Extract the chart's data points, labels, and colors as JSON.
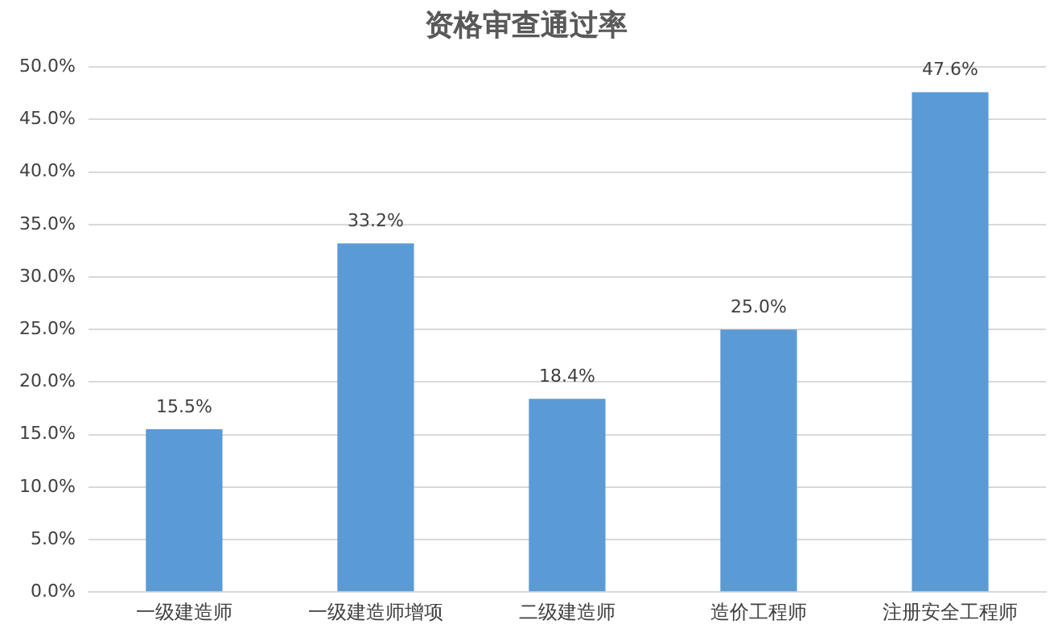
{
  "chart_data": {
    "type": "bar",
    "title": "资格审查通过率",
    "categories": [
      "一级建造师",
      "一级建造师增项",
      "二级建造师",
      "造价工程师",
      "注册安全工程师"
    ],
    "values": [
      15.5,
      33.2,
      18.4,
      25.0,
      47.6
    ],
    "value_labels": [
      "15.5%",
      "33.2%",
      "18.4%",
      "25.0%",
      "47.6%"
    ],
    "color": "#5b9bd5",
    "ylim": [
      0,
      50
    ],
    "yticks": [
      {
        "value": 0,
        "label": "0.0%"
      },
      {
        "value": 5,
        "label": "5.0%"
      },
      {
        "value": 10,
        "label": "10.0%"
      },
      {
        "value": 15,
        "label": "15.0%"
      },
      {
        "value": 20,
        "label": "20.0%"
      },
      {
        "value": 25,
        "label": "25.0%"
      },
      {
        "value": 30,
        "label": "30.0%"
      },
      {
        "value": 35,
        "label": "35.0%"
      },
      {
        "value": 40,
        "label": "40.0%"
      },
      {
        "value": 45,
        "label": "45.0%"
      },
      {
        "value": 50,
        "label": "50.0%"
      }
    ],
    "grid": "y",
    "legend": false
  }
}
